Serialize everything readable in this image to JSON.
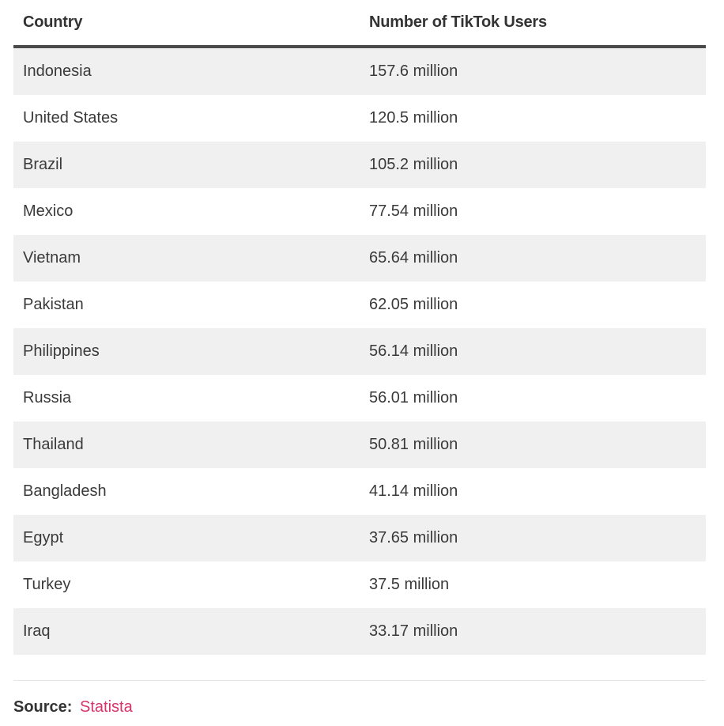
{
  "table": {
    "headers": [
      "Country",
      "Number of TikTok Users"
    ],
    "rows": [
      [
        "Indonesia",
        "157.6 million"
      ],
      [
        "United States",
        "120.5 million"
      ],
      [
        "Brazil",
        "105.2 million"
      ],
      [
        "Mexico",
        "77.54 million"
      ],
      [
        "Vietnam",
        "65.64 million"
      ],
      [
        "Pakistan",
        "62.05 million"
      ],
      [
        "Philippines",
        "56.14 million"
      ],
      [
        "Russia",
        "56.01 million"
      ],
      [
        "Thailand",
        "50.81 million"
      ],
      [
        "Bangladesh",
        "41.14 million"
      ],
      [
        "Egypt",
        "37.65 million"
      ],
      [
        "Turkey",
        "37.5 million"
      ],
      [
        "Iraq",
        "33.17 million"
      ]
    ]
  },
  "source": {
    "label": "Source:",
    "link_text": "Statista",
    "link_color": "#d6336c"
  }
}
